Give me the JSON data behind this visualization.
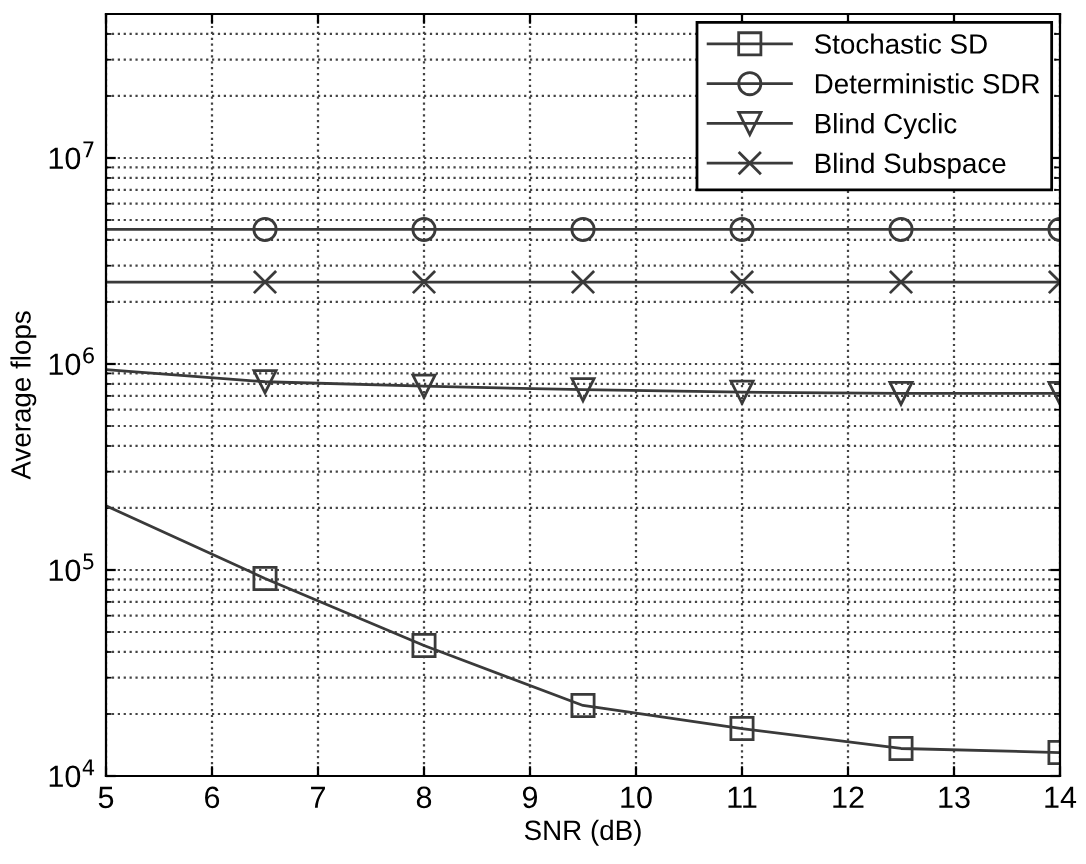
{
  "chart_data": {
    "type": "line",
    "xlabel": "SNR (dB)",
    "ylabel": "Average flops",
    "x": [
      5,
      6.5,
      8,
      9.5,
      11,
      12.5,
      14
    ],
    "series": [
      {
        "name": "Stochastic SD",
        "color": "#3a3a3a",
        "marker": "square",
        "values": [
          205000,
          91000,
          43000,
          22000,
          17000,
          13600,
          13000
        ]
      },
      {
        "name": "Deterministic SDR",
        "color": "#3a3a3a",
        "marker": "circle",
        "values": [
          4500000,
          4500000,
          4500000,
          4500000,
          4500000,
          4500000,
          4500000
        ]
      },
      {
        "name": "Blind Cyclic",
        "color": "#3a3a3a",
        "marker": "triangle",
        "values": [
          940000,
          820000,
          780000,
          750000,
          730000,
          720000,
          720000
        ]
      },
      {
        "name": "Blind Subspace",
        "color": "#3a3a3a",
        "marker": "cross",
        "values": [
          2500000,
          2500000,
          2500000,
          2500000,
          2500000,
          2500000,
          2500000
        ]
      }
    ],
    "log": "y",
    "xlim": [
      5,
      14
    ],
    "ylim": [
      10000,
      50000000
    ],
    "xticks": [
      5,
      6,
      7,
      8,
      9,
      10,
      11,
      12,
      13,
      14
    ],
    "yticks": [
      {
        "value": 10000,
        "label": "10$^{4}$"
      },
      {
        "value": 100000,
        "label": "10$^{5}$"
      },
      {
        "value": 1000000,
        "label": "10$^{6}$"
      },
      {
        "value": 10000000,
        "label": "10$^{7}$"
      }
    ],
    "grid": true,
    "legend": "top right",
    "line_style": "solid"
  }
}
